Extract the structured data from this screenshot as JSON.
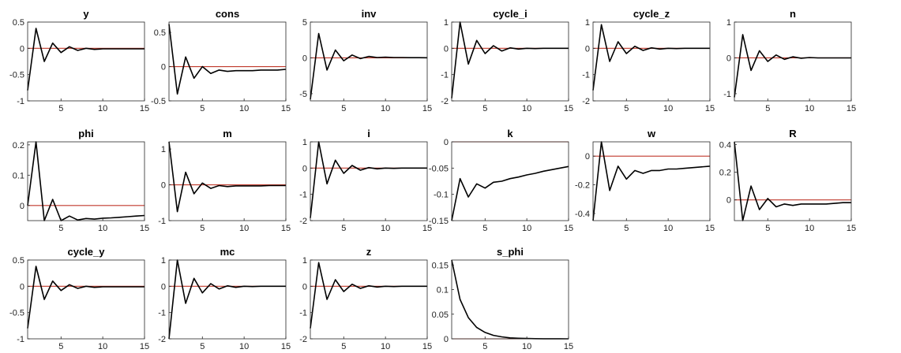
{
  "figure": {
    "colors": {
      "response": "#000000",
      "zero_line": "#c0392b",
      "axes": "#262626"
    },
    "grid": false
  },
  "chart_data": [
    {
      "type": "line",
      "title": "y",
      "x": [
        1,
        2,
        3,
        4,
        5,
        6,
        7,
        8,
        9,
        10,
        11,
        12,
        13,
        14,
        15
      ],
      "values": [
        -0.8,
        0.38,
        -0.25,
        0.1,
        -0.08,
        0.03,
        -0.04,
        0.0,
        -0.02,
        -0.01,
        -0.01,
        -0.01,
        -0.01,
        -0.01,
        -0.01
      ],
      "xlim": [
        1,
        15
      ],
      "ylim": [
        -1,
        0.5
      ],
      "xticks": [
        5,
        10,
        15
      ],
      "xtick_labels": [
        "5",
        "10",
        "15"
      ],
      "yticks": [
        -1,
        -0.5,
        0,
        0.5
      ],
      "ytick_labels": [
        "-1",
        "-0.5",
        "0",
        "0.5"
      ]
    },
    {
      "type": "line",
      "title": "cons",
      "x": [
        1,
        2,
        3,
        4,
        5,
        6,
        7,
        8,
        9,
        10,
        11,
        12,
        13,
        14,
        15
      ],
      "values": [
        0.62,
        -0.4,
        0.14,
        -0.17,
        0.0,
        -0.1,
        -0.05,
        -0.07,
        -0.06,
        -0.06,
        -0.06,
        -0.05,
        -0.05,
        -0.05,
        -0.04
      ],
      "xlim": [
        1,
        15
      ],
      "ylim": [
        -0.5,
        0.65
      ],
      "xticks": [
        5,
        10,
        15
      ],
      "xtick_labels": [
        "5",
        "10",
        "15"
      ],
      "yticks": [
        -0.5,
        0,
        0.5
      ],
      "ytick_labels": [
        "-0.5",
        "0",
        "0.5"
      ]
    },
    {
      "type": "line",
      "title": "inv",
      "x": [
        1,
        2,
        3,
        4,
        5,
        6,
        7,
        8,
        9,
        10,
        11,
        12,
        13,
        14,
        15
      ],
      "values": [
        -5.8,
        3.4,
        -1.7,
        1.1,
        -0.4,
        0.4,
        -0.1,
        0.2,
        0.05,
        0.1,
        0.05,
        0.05,
        0.03,
        0.03,
        0.02
      ],
      "xlim": [
        1,
        15
      ],
      "ylim": [
        -6,
        5
      ],
      "xticks": [
        5,
        10,
        15
      ],
      "xtick_labels": [
        "5",
        "10",
        "15"
      ],
      "yticks": [
        -5,
        0,
        5
      ],
      "ytick_labels": [
        "-5",
        "0",
        "5"
      ]
    },
    {
      "type": "line",
      "title": "cycle_i",
      "x": [
        1,
        2,
        3,
        4,
        5,
        6,
        7,
        8,
        9,
        10,
        11,
        12,
        13,
        14,
        15
      ],
      "values": [
        -1.9,
        1.0,
        -0.6,
        0.3,
        -0.2,
        0.1,
        -0.1,
        0.02,
        -0.03,
        0.0,
        -0.01,
        0.0,
        0.0,
        0.0,
        0.0
      ],
      "xlim": [
        1,
        15
      ],
      "ylim": [
        -2,
        1
      ],
      "xticks": [
        5,
        10,
        15
      ],
      "xtick_labels": [
        "5",
        "10",
        "15"
      ],
      "yticks": [
        -2,
        -1,
        0,
        1
      ],
      "ytick_labels": [
        "-2",
        "-1",
        "0",
        "1"
      ]
    },
    {
      "type": "line",
      "title": "cycle_z",
      "x": [
        1,
        2,
        3,
        4,
        5,
        6,
        7,
        8,
        9,
        10,
        11,
        12,
        13,
        14,
        15
      ],
      "values": [
        -1.6,
        0.9,
        -0.5,
        0.25,
        -0.2,
        0.08,
        -0.08,
        0.02,
        -0.03,
        0.0,
        -0.01,
        0.0,
        0.0,
        0.0,
        0.0
      ],
      "xlim": [
        1,
        15
      ],
      "ylim": [
        -2,
        1
      ],
      "xticks": [
        5,
        10,
        15
      ],
      "xtick_labels": [
        "5",
        "10",
        "15"
      ],
      "yticks": [
        -2,
        -1,
        0,
        1
      ],
      "ytick_labels": [
        "-2",
        "-1",
        "0",
        "1"
      ]
    },
    {
      "type": "line",
      "title": "n",
      "x": [
        1,
        2,
        3,
        4,
        5,
        6,
        7,
        8,
        9,
        10,
        11,
        12,
        13,
        14,
        15
      ],
      "values": [
        -1.1,
        0.65,
        -0.35,
        0.2,
        -0.1,
        0.08,
        -0.04,
        0.03,
        -0.01,
        0.01,
        0.0,
        0.0,
        0.0,
        0.0,
        0.0
      ],
      "xlim": [
        1,
        15
      ],
      "ylim": [
        -1.2,
        1
      ],
      "xticks": [
        5,
        10,
        15
      ],
      "xtick_labels": [
        "5",
        "10",
        "15"
      ],
      "yticks": [
        -1,
        0,
        1
      ],
      "ytick_labels": [
        "-1",
        "0",
        "1"
      ]
    },
    {
      "type": "line",
      "title": "phi",
      "x": [
        1,
        2,
        3,
        4,
        5,
        6,
        7,
        8,
        9,
        10,
        11,
        12,
        13,
        14,
        15
      ],
      "values": [
        0.0,
        0.21,
        -0.05,
        0.02,
        -0.05,
        -0.035,
        -0.048,
        -0.043,
        -0.045,
        -0.042,
        -0.041,
        -0.039,
        -0.037,
        -0.035,
        -0.033
      ],
      "xlim": [
        1,
        15
      ],
      "ylim": [
        -0.05,
        0.21
      ],
      "xticks": [
        5,
        10,
        15
      ],
      "xtick_labels": [
        "5",
        "10",
        "15"
      ],
      "yticks": [
        0,
        0.1,
        0.2
      ],
      "ytick_labels": [
        "0",
        "0.1",
        "0.2"
      ]
    },
    {
      "type": "line",
      "title": "m",
      "x": [
        1,
        2,
        3,
        4,
        5,
        6,
        7,
        8,
        9,
        10,
        11,
        12,
        13,
        14,
        15
      ],
      "values": [
        1.2,
        -0.75,
        0.35,
        -0.25,
        0.05,
        -0.1,
        -0.02,
        -0.05,
        -0.03,
        -0.03,
        -0.03,
        -0.03,
        -0.02,
        -0.02,
        -0.02
      ],
      "xlim": [
        1,
        15
      ],
      "ylim": [
        -1,
        1.2
      ],
      "xticks": [
        5,
        10,
        15
      ],
      "xtick_labels": [
        "5",
        "10",
        "15"
      ],
      "yticks": [
        -1,
        0,
        1
      ],
      "ytick_labels": [
        "-1",
        "0",
        "1"
      ]
    },
    {
      "type": "line",
      "title": "i",
      "x": [
        1,
        2,
        3,
        4,
        5,
        6,
        7,
        8,
        9,
        10,
        11,
        12,
        13,
        14,
        15
      ],
      "values": [
        -1.9,
        1.0,
        -0.6,
        0.3,
        -0.2,
        0.1,
        -0.08,
        0.02,
        -0.03,
        0.0,
        -0.01,
        0.0,
        0.0,
        0.0,
        0.0
      ],
      "xlim": [
        1,
        15
      ],
      "ylim": [
        -2,
        1
      ],
      "xticks": [
        5,
        10,
        15
      ],
      "xtick_labels": [
        "5",
        "10",
        "15"
      ],
      "yticks": [
        -2,
        -1,
        0,
        1
      ],
      "ytick_labels": [
        "-2",
        "-1",
        "0",
        "1"
      ]
    },
    {
      "type": "line",
      "title": "k",
      "x": [
        1,
        2,
        3,
        4,
        5,
        6,
        7,
        8,
        9,
        10,
        11,
        12,
        13,
        14,
        15
      ],
      "values": [
        -0.15,
        -0.07,
        -0.105,
        -0.08,
        -0.088,
        -0.077,
        -0.075,
        -0.07,
        -0.067,
        -0.063,
        -0.06,
        -0.056,
        -0.053,
        -0.05,
        -0.047
      ],
      "xlim": [
        1,
        15
      ],
      "ylim": [
        -0.15,
        0
      ],
      "xticks": [
        5,
        10,
        15
      ],
      "xtick_labels": [
        "5",
        "10",
        "15"
      ],
      "yticks": [
        -0.15,
        -0.1,
        -0.05,
        0
      ],
      "ytick_labels": [
        "-0.15",
        "-0.1",
        "-0.05",
        "0"
      ]
    },
    {
      "type": "line",
      "title": "w",
      "x": [
        1,
        2,
        3,
        4,
        5,
        6,
        7,
        8,
        9,
        10,
        11,
        12,
        13,
        14,
        15
      ],
      "values": [
        -0.45,
        0.1,
        -0.24,
        -0.07,
        -0.16,
        -0.1,
        -0.12,
        -0.1,
        -0.1,
        -0.09,
        -0.09,
        -0.085,
        -0.08,
        -0.075,
        -0.07
      ],
      "xlim": [
        1,
        15
      ],
      "ylim": [
        -0.45,
        0.1
      ],
      "xticks": [
        5,
        10,
        15
      ],
      "xtick_labels": [
        "5",
        "10",
        "15"
      ],
      "yticks": [
        -0.4,
        -0.2,
        0
      ],
      "ytick_labels": [
        "-0.4",
        "-0.2",
        "0"
      ]
    },
    {
      "type": "line",
      "title": "R",
      "x": [
        1,
        2,
        3,
        4,
        5,
        6,
        7,
        8,
        9,
        10,
        11,
        12,
        13,
        14,
        15
      ],
      "values": [
        0.42,
        -0.15,
        0.1,
        -0.07,
        0.01,
        -0.05,
        -0.03,
        -0.04,
        -0.03,
        -0.03,
        -0.03,
        -0.03,
        -0.025,
        -0.02,
        -0.02
      ],
      "xlim": [
        1,
        15
      ],
      "ylim": [
        -0.15,
        0.42
      ],
      "xticks": [
        5,
        10,
        15
      ],
      "xtick_labels": [
        "5",
        "10",
        "15"
      ],
      "yticks": [
        0,
        0.2,
        0.4
      ],
      "ytick_labels": [
        "0",
        "0.2",
        "0.4"
      ]
    },
    {
      "type": "line",
      "title": "cycle_y",
      "x": [
        1,
        2,
        3,
        4,
        5,
        6,
        7,
        8,
        9,
        10,
        11,
        12,
        13,
        14,
        15
      ],
      "values": [
        -0.8,
        0.38,
        -0.25,
        0.1,
        -0.08,
        0.03,
        -0.04,
        0.0,
        -0.02,
        -0.01,
        -0.01,
        -0.01,
        -0.01,
        -0.01,
        -0.01
      ],
      "xlim": [
        1,
        15
      ],
      "ylim": [
        -1,
        0.5
      ],
      "xticks": [
        5,
        10,
        15
      ],
      "xtick_labels": [
        "5",
        "10",
        "15"
      ],
      "yticks": [
        -1,
        -0.5,
        0,
        0.5
      ],
      "ytick_labels": [
        "-1",
        "-0.5",
        "0",
        "0.5"
      ]
    },
    {
      "type": "line",
      "title": "mc",
      "x": [
        1,
        2,
        3,
        4,
        5,
        6,
        7,
        8,
        9,
        10,
        11,
        12,
        13,
        14,
        15
      ],
      "values": [
        -2.0,
        1.0,
        -0.65,
        0.3,
        -0.25,
        0.1,
        -0.1,
        0.02,
        -0.04,
        0.0,
        -0.01,
        0.0,
        0.0,
        0.0,
        0.0
      ],
      "xlim": [
        1,
        15
      ],
      "ylim": [
        -2,
        1
      ],
      "xticks": [
        5,
        10,
        15
      ],
      "xtick_labels": [
        "5",
        "10",
        "15"
      ],
      "yticks": [
        -2,
        -1,
        0,
        1
      ],
      "ytick_labels": [
        "-2",
        "-1",
        "0",
        "1"
      ]
    },
    {
      "type": "line",
      "title": "z",
      "x": [
        1,
        2,
        3,
        4,
        5,
        6,
        7,
        8,
        9,
        10,
        11,
        12,
        13,
        14,
        15
      ],
      "values": [
        -1.6,
        0.9,
        -0.5,
        0.25,
        -0.2,
        0.08,
        -0.08,
        0.02,
        -0.03,
        0.0,
        -0.01,
        0.0,
        0.0,
        0.0,
        0.0
      ],
      "xlim": [
        1,
        15
      ],
      "ylim": [
        -2,
        1
      ],
      "xticks": [
        5,
        10,
        15
      ],
      "xtick_labels": [
        "5",
        "10",
        "15"
      ],
      "yticks": [
        -2,
        -1,
        0,
        1
      ],
      "ytick_labels": [
        "-2",
        "-1",
        "0",
        "1"
      ]
    },
    {
      "type": "line",
      "title": "s_phi",
      "x": [
        1,
        2,
        3,
        4,
        5,
        6,
        7,
        8,
        9,
        10,
        11,
        12,
        13,
        14,
        15
      ],
      "values": [
        0.16,
        0.08,
        0.043,
        0.023,
        0.013,
        0.007,
        0.004,
        0.002,
        0.0012,
        0.0007,
        0.0004,
        0.0002,
        0.0001,
        0.0001,
        0.0
      ],
      "xlim": [
        1,
        15
      ],
      "ylim": [
        0,
        0.16
      ],
      "xticks": [
        5,
        10,
        15
      ],
      "xtick_labels": [
        "5",
        "10",
        "15"
      ],
      "yticks": [
        0,
        0.05,
        0.1,
        0.15
      ],
      "ytick_labels": [
        "0",
        "0.05",
        "0.1",
        "0.15"
      ]
    }
  ]
}
